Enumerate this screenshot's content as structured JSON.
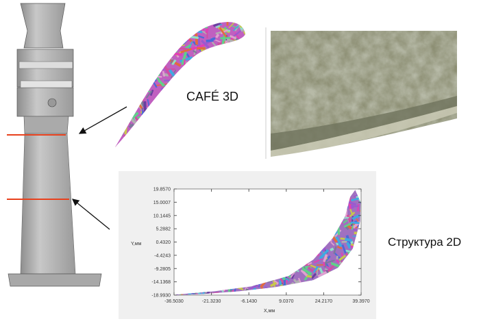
{
  "labels": {
    "cafe3d": "CAFÉ 3D",
    "structure2d": "Структура 2D"
  },
  "chart_data": {
    "type": "scatter",
    "xlabel": "X,мм",
    "ylabel": "Y,мм",
    "xlim": [
      -36.503,
      39.397
    ],
    "ylim": [
      -18.993,
      19.857
    ],
    "x_ticks": [
      "-36.5030",
      "-21.3230",
      "-6.1430",
      "9.0370",
      "24.2170",
      "39.3970"
    ],
    "y_ticks": [
      "19.8570",
      "15.0007",
      "10.1445",
      "5.2882",
      "0.4320",
      "-4.4243",
      "-9.2805",
      "-14.1368",
      "-18.9930"
    ],
    "grid": false
  },
  "colors": {
    "section_line": "#e8401c",
    "blade": "#b5b5b5",
    "photo": "#8a8c70"
  }
}
